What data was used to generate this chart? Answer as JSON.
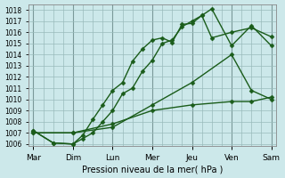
{
  "xlabel": "Pression niveau de la mer( hPa )",
  "background_color": "#cce8ea",
  "grid_color": "#99bbbb",
  "line_color": "#1a5c1a",
  "ylim": [
    1005.8,
    1018.5
  ],
  "yticks": [
    1006,
    1007,
    1008,
    1009,
    1010,
    1011,
    1012,
    1013,
    1014,
    1015,
    1016,
    1017,
    1018
  ],
  "x_labels": [
    "Mar",
    "Dim",
    "Lun",
    "Mer",
    "Jeu",
    "Ven",
    "Sam"
  ],
  "x_ticks": [
    0,
    4,
    8,
    12,
    16,
    20,
    24
  ],
  "x_minor_ticks": [
    0,
    1,
    2,
    3,
    4,
    5,
    6,
    7,
    8,
    9,
    10,
    11,
    12,
    13,
    14,
    15,
    16,
    17,
    18,
    19,
    20,
    21,
    22,
    23,
    24
  ],
  "xlim": [
    -0.5,
    24.5
  ],
  "series": [
    {
      "x": [
        0,
        2,
        4,
        5,
        6,
        7,
        8,
        9,
        10,
        11,
        12,
        13,
        14,
        15,
        16,
        17,
        18,
        20,
        22,
        24
      ],
      "y": [
        1007.2,
        1006.1,
        1006.0,
        1006.8,
        1008.2,
        1009.5,
        1010.8,
        1011.5,
        1013.4,
        1014.5,
        1015.3,
        1015.5,
        1015.1,
        1016.7,
        1016.8,
        1017.5,
        1015.5,
        1016.0,
        1016.4,
        1015.6
      ]
    },
    {
      "x": [
        0,
        2,
        4,
        5,
        6,
        7,
        8,
        9,
        10,
        11,
        12,
        13,
        14,
        15,
        16,
        17,
        18,
        20,
        22,
        24
      ],
      "y": [
        1007.2,
        1006.1,
        1006.0,
        1006.5,
        1007.0,
        1008.0,
        1009.0,
        1010.5,
        1011.0,
        1012.5,
        1013.5,
        1015.0,
        1015.3,
        1016.5,
        1017.0,
        1017.5,
        1018.1,
        1014.8,
        1016.6,
        1014.8
      ]
    },
    {
      "x": [
        0,
        4,
        8,
        12,
        16,
        20,
        22,
        24
      ],
      "y": [
        1007.0,
        1007.0,
        1007.5,
        1009.5,
        1011.5,
        1014.0,
        1010.8,
        1010.0
      ]
    },
    {
      "x": [
        0,
        4,
        8,
        12,
        16,
        20,
        22,
        24
      ],
      "y": [
        1007.0,
        1007.0,
        1007.8,
        1009.0,
        1009.5,
        1009.8,
        1009.8,
        1010.2
      ]
    }
  ]
}
